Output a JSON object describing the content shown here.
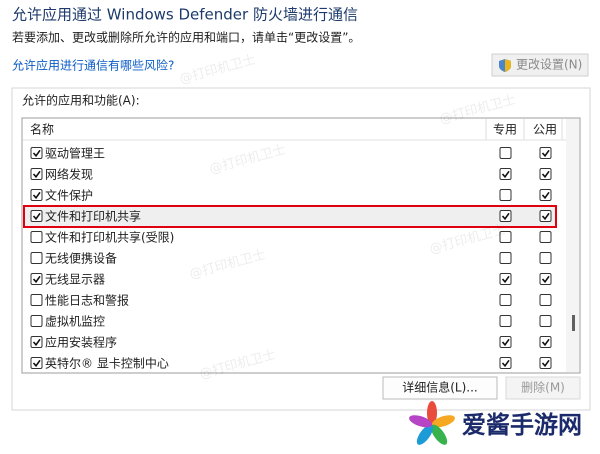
{
  "header": {
    "title": "允许应用通过 Windows Defender 防火墙进行通信",
    "description": "若要添加、更改或删除所允许的应用和端口，请单击“更改设置”。",
    "link": "允许应用进行通信有哪些风险?",
    "change_button": "更改设置(N)"
  },
  "group": {
    "label": "允许的应用和功能(A):"
  },
  "table": {
    "columns": [
      "名称",
      "专用",
      "公用"
    ],
    "rows": [
      {
        "name": "驱动管理王",
        "enabled": true,
        "private": false,
        "public": true
      },
      {
        "name": "网络发现",
        "enabled": true,
        "private": true,
        "public": true
      },
      {
        "name": "文件保护",
        "enabled": true,
        "private": false,
        "public": true
      },
      {
        "name": "文件和打印机共享",
        "enabled": true,
        "private": true,
        "public": true,
        "highlighted": true
      },
      {
        "name": "文件和打印机共享(受限)",
        "enabled": false,
        "private": false,
        "public": false
      },
      {
        "name": "无线便携设备",
        "enabled": false,
        "private": false,
        "public": false
      },
      {
        "name": "无线显示器",
        "enabled": true,
        "private": true,
        "public": true
      },
      {
        "name": "性能日志和警报",
        "enabled": false,
        "private": false,
        "public": false
      },
      {
        "name": "虚拟机监控",
        "enabled": false,
        "private": false,
        "public": false
      },
      {
        "name": "应用安装程序",
        "enabled": true,
        "private": true,
        "public": true
      },
      {
        "name": "英特尔® 显卡控制中心",
        "enabled": true,
        "private": true,
        "public": true
      }
    ]
  },
  "buttons": {
    "details": "详细信息(L)...",
    "delete": "删除(M)"
  },
  "watermark": "@打印机卫士",
  "logo": "爱酱手游网"
}
